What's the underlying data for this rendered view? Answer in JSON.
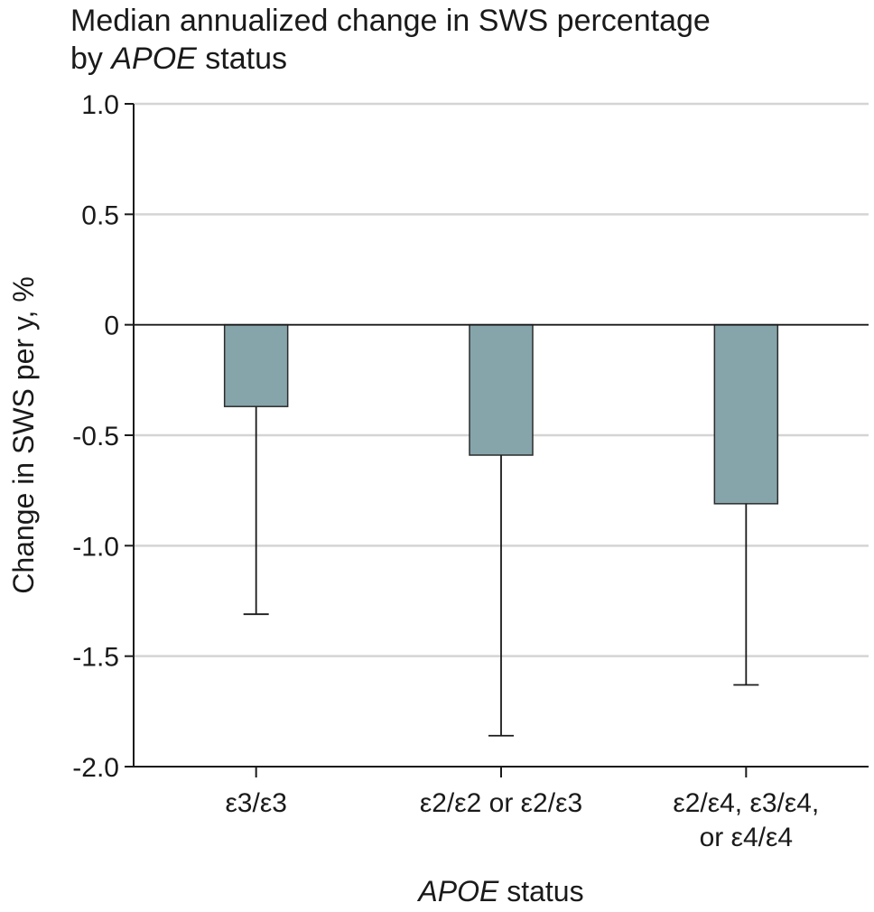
{
  "chart_data": {
    "type": "bar",
    "title": {
      "line1": "Median annualized change in SWS percentage",
      "line2_prefix": "by ",
      "line2_italic": "APOE",
      "line2_suffix": " status"
    },
    "xlabel": {
      "italic": "APOE",
      "suffix": " status"
    },
    "ylabel": "Change in SWS per y, %",
    "ylim": [
      -2.0,
      1.0
    ],
    "yticks": [
      {
        "value": 1.0,
        "label": "1.0"
      },
      {
        "value": 0.5,
        "label": "0.5"
      },
      {
        "value": 0,
        "label": "0"
      },
      {
        "value": -0.5,
        "label": "-0.5"
      },
      {
        "value": -1.0,
        "label": "-1.0"
      },
      {
        "value": -1.5,
        "label": "-1.5"
      },
      {
        "value": -2.0,
        "label": "-2.0"
      }
    ],
    "grid": true,
    "categories": [
      [
        "ε3/ε3"
      ],
      [
        "ε2/ε2 or ε2/ε3"
      ],
      [
        "ε2/ε4, ε3/ε4,",
        "or ε4/ε4"
      ]
    ],
    "values": [
      -0.37,
      -0.59,
      -0.81
    ],
    "error_lower": [
      -1.31,
      -1.86,
      -1.63
    ],
    "colors": {
      "bar": "#86a5ab",
      "bar_edge": "#2b2b2b",
      "grid": "#d4d4d4",
      "axis": "#1a1a1a"
    }
  }
}
